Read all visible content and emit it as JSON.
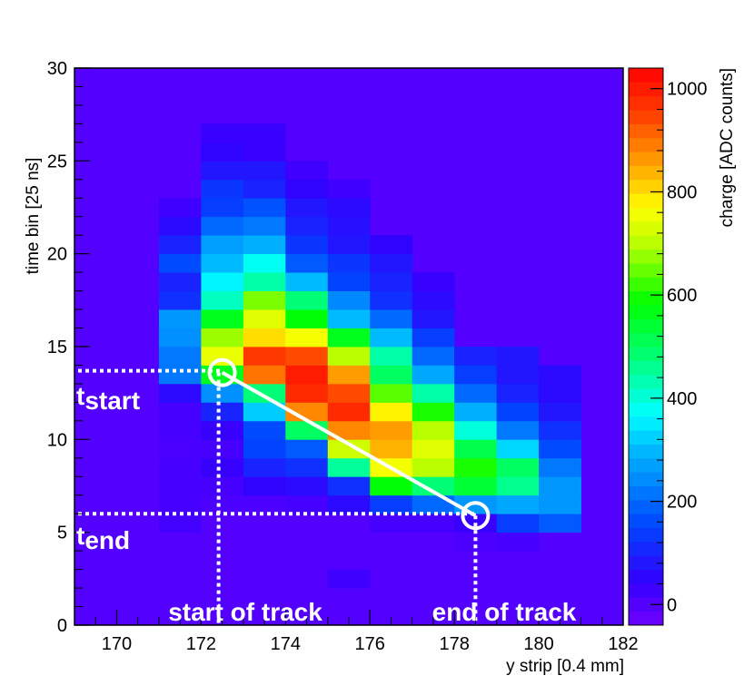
{
  "chart_data": {
    "type": "heatmap",
    "title": "",
    "xlabel": "y strip [0.4 mm]",
    "ylabel": "time bin [25 ns]",
    "zlabel": "charge [ADC counts]",
    "xlim": [
      169,
      182
    ],
    "ylim": [
      0,
      30
    ],
    "zlim": [
      -40,
      1040
    ],
    "x_ticks": [
      170,
      172,
      174,
      176,
      178,
      180,
      182
    ],
    "y_ticks": [
      0,
      5,
      10,
      15,
      20,
      25,
      30
    ],
    "z_ticks": [
      0,
      200,
      400,
      600,
      800,
      1000
    ],
    "background_value": 0,
    "bin_width_x": 1,
    "bin_width_y": 1,
    "columns": [
      {
        "x": 171,
        "values": [
          [
            4,
            0
          ],
          [
            5,
            25
          ],
          [
            6,
            20
          ],
          [
            7,
            20
          ],
          [
            8,
            20
          ],
          [
            9,
            15
          ],
          [
            10,
            20
          ],
          [
            11,
            20
          ],
          [
            12,
            60
          ],
          [
            13,
            220
          ],
          [
            14,
            220
          ],
          [
            15,
            250
          ],
          [
            16,
            260
          ],
          [
            17,
            120
          ],
          [
            18,
            100
          ],
          [
            19,
            160
          ],
          [
            20,
            100
          ],
          [
            21,
            60
          ],
          [
            22,
            30
          ]
        ]
      },
      {
        "x": 172,
        "values": [
          [
            4,
            0
          ],
          [
            5,
            0
          ],
          [
            6,
            10
          ],
          [
            7,
            20
          ],
          [
            8,
            40
          ],
          [
            9,
            20
          ],
          [
            10,
            40
          ],
          [
            11,
            100
          ],
          [
            12,
            250
          ],
          [
            13,
            560
          ],
          [
            14,
            750
          ],
          [
            15,
            680
          ],
          [
            16,
            560
          ],
          [
            17,
            420
          ],
          [
            18,
            360
          ],
          [
            19,
            300
          ],
          [
            20,
            270
          ],
          [
            21,
            200
          ],
          [
            22,
            140
          ],
          [
            23,
            130
          ],
          [
            24,
            80
          ],
          [
            25,
            50
          ],
          [
            26,
            40
          ]
        ]
      },
      {
        "x": 173,
        "values": [
          [
            6,
            10
          ],
          [
            7,
            50
          ],
          [
            8,
            100
          ],
          [
            9,
            150
          ],
          [
            10,
            160
          ],
          [
            11,
            320
          ],
          [
            12,
            480
          ],
          [
            13,
            900
          ],
          [
            14,
            960
          ],
          [
            15,
            800
          ],
          [
            16,
            740
          ],
          [
            17,
            660
          ],
          [
            18,
            440
          ],
          [
            19,
            380
          ],
          [
            20,
            290
          ],
          [
            21,
            220
          ],
          [
            22,
            170
          ],
          [
            23,
            100
          ],
          [
            24,
            80
          ],
          [
            25,
            40
          ],
          [
            26,
            40
          ]
        ]
      },
      {
        "x": 174,
        "values": [
          [
            5,
            0
          ],
          [
            6,
            20
          ],
          [
            7,
            60
          ],
          [
            8,
            120
          ],
          [
            9,
            180
          ],
          [
            10,
            500
          ],
          [
            11,
            880
          ],
          [
            12,
            980
          ],
          [
            13,
            1000
          ],
          [
            14,
            940
          ],
          [
            15,
            760
          ],
          [
            16,
            580
          ],
          [
            17,
            480
          ],
          [
            18,
            300
          ],
          [
            19,
            180
          ],
          [
            20,
            130
          ],
          [
            21,
            100
          ],
          [
            22,
            80
          ],
          [
            23,
            50
          ],
          [
            24,
            30
          ]
        ]
      },
      {
        "x": 175,
        "values": [
          [
            2,
            30
          ],
          [
            5,
            0
          ],
          [
            6,
            60
          ],
          [
            7,
            120
          ],
          [
            8,
            450
          ],
          [
            9,
            720
          ],
          [
            10,
            880
          ],
          [
            11,
            980
          ],
          [
            12,
            940
          ],
          [
            13,
            860
          ],
          [
            14,
            700
          ],
          [
            15,
            560
          ],
          [
            16,
            300
          ],
          [
            17,
            240
          ],
          [
            18,
            150
          ],
          [
            19,
            130
          ],
          [
            20,
            80
          ],
          [
            21,
            70
          ],
          [
            22,
            60
          ],
          [
            23,
            30
          ]
        ]
      },
      {
        "x": 176,
        "values": [
          [
            5,
            20
          ],
          [
            6,
            140
          ],
          [
            7,
            580
          ],
          [
            8,
            760
          ],
          [
            9,
            840
          ],
          [
            10,
            860
          ],
          [
            11,
            780
          ],
          [
            12,
            640
          ],
          [
            13,
            500
          ],
          [
            14,
            440
          ],
          [
            15,
            300
          ],
          [
            16,
            200
          ],
          [
            17,
            120
          ],
          [
            18,
            100
          ],
          [
            19,
            80
          ],
          [
            20,
            50
          ]
        ]
      },
      {
        "x": 177,
        "values": [
          [
            5,
            20
          ],
          [
            6,
            200
          ],
          [
            7,
            480
          ],
          [
            8,
            700
          ],
          [
            9,
            740
          ],
          [
            10,
            700
          ],
          [
            11,
            600
          ],
          [
            12,
            440
          ],
          [
            13,
            280
          ],
          [
            14,
            200
          ],
          [
            15,
            140
          ],
          [
            16,
            80
          ],
          [
            17,
            60
          ],
          [
            18,
            40
          ]
        ]
      },
      {
        "x": 178,
        "values": [
          [
            4,
            10
          ],
          [
            5,
            40
          ],
          [
            6,
            260
          ],
          [
            7,
            540
          ],
          [
            8,
            600
          ],
          [
            9,
            520
          ],
          [
            10,
            400
          ],
          [
            11,
            290
          ],
          [
            12,
            200
          ],
          [
            13,
            140
          ],
          [
            14,
            100
          ]
        ]
      },
      {
        "x": 179,
        "values": [
          [
            4,
            20
          ],
          [
            5,
            140
          ],
          [
            6,
            280
          ],
          [
            7,
            460
          ],
          [
            8,
            500
          ],
          [
            9,
            330
          ],
          [
            10,
            220
          ],
          [
            11,
            150
          ],
          [
            12,
            100
          ],
          [
            13,
            80
          ],
          [
            14,
            80
          ]
        ]
      },
      {
        "x": 180,
        "values": [
          [
            5,
            180
          ],
          [
            6,
            260
          ],
          [
            7,
            260
          ],
          [
            8,
            220
          ],
          [
            9,
            160
          ],
          [
            10,
            120
          ],
          [
            11,
            80
          ],
          [
            12,
            60
          ],
          [
            13,
            60
          ]
        ]
      }
    ],
    "annotations": {
      "t_start": {
        "x": 172.5,
        "y": 13.6
      },
      "t_end": {
        "x": 178.5,
        "y": 5.9
      },
      "t_start_label": "start",
      "t_end_label": "end",
      "t_prefix": "t",
      "start_of_track_label": "start of track",
      "end_of_track_label": "end of track"
    }
  }
}
